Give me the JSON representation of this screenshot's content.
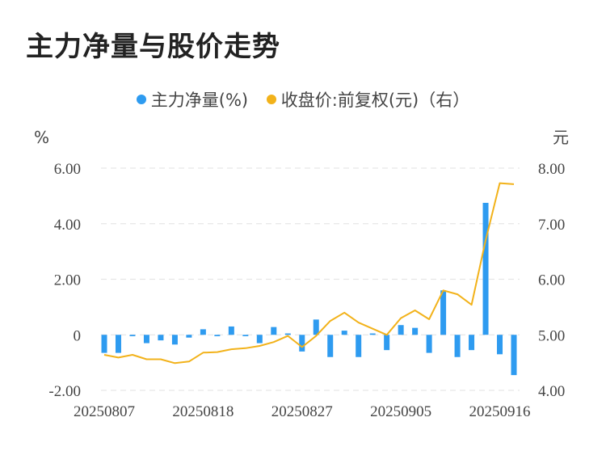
{
  "chart_data": {
    "type": "bar",
    "title": "主力净量与股价走势",
    "legend": [
      {
        "name": "主力净量(%)",
        "color": "#2e9bf0"
      },
      {
        "name": "收盘价:前复权(元)（右）",
        "color": "#f2b21a"
      }
    ],
    "y_left_unit": "%",
    "y_right_unit": "元",
    "y_left_ticks": [
      "6.00",
      "4.00",
      "2.00",
      "0",
      "-2.00"
    ],
    "y_right_ticks": [
      "8.00",
      "7.00",
      "6.00",
      "5.00",
      "4.00"
    ],
    "ylim_left": [
      -2,
      6
    ],
    "ylim_right": [
      4,
      8
    ],
    "x_tick_labels": [
      "20250807",
      "20250818",
      "20250827",
      "20250905",
      "20250916"
    ],
    "x_tick_indices": [
      0,
      7,
      14,
      21,
      28
    ],
    "grid": true,
    "legend_position": "top-center",
    "series": [
      {
        "name": "主力净量(%)",
        "kind": "bar",
        "axis": "left",
        "color": "#2e9bf0",
        "values": [
          -0.65,
          -0.65,
          -0.05,
          -0.3,
          -0.2,
          -0.35,
          -0.1,
          0.2,
          -0.05,
          0.3,
          -0.05,
          -0.3,
          0.28,
          0.05,
          -0.6,
          0.55,
          -0.8,
          0.15,
          -0.8,
          0.05,
          -0.55,
          0.35,
          0.25,
          -0.65,
          1.6,
          -0.8,
          -0.55,
          4.75,
          -0.7,
          -1.45
        ]
      },
      {
        "name": "收盘价:前复权(元)（右）",
        "kind": "line",
        "axis": "right",
        "color": "#f2b21a",
        "values": [
          4.64,
          4.59,
          4.64,
          4.56,
          4.56,
          4.49,
          4.52,
          4.68,
          4.69,
          4.74,
          4.76,
          4.8,
          4.87,
          4.98,
          4.78,
          4.98,
          5.25,
          5.4,
          5.22,
          5.11,
          5.0,
          5.3,
          5.44,
          5.28,
          5.8,
          5.73,
          5.54,
          6.7,
          7.73,
          7.71
        ]
      }
    ]
  }
}
